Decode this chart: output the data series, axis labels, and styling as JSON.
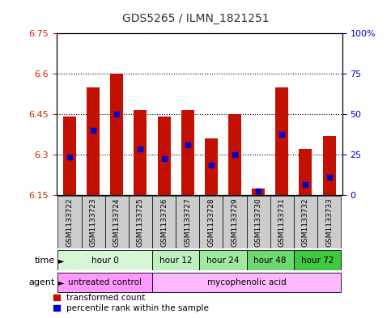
{
  "title": "GDS5265 / ILMN_1821251",
  "samples": [
    "GSM1133722",
    "GSM1133723",
    "GSM1133724",
    "GSM1133725",
    "GSM1133726",
    "GSM1133727",
    "GSM1133728",
    "GSM1133729",
    "GSM1133730",
    "GSM1133731",
    "GSM1133732",
    "GSM1133733"
  ],
  "bar_values": [
    6.44,
    6.55,
    6.6,
    6.465,
    6.44,
    6.465,
    6.36,
    6.45,
    6.175,
    6.55,
    6.32,
    6.37
  ],
  "bar_bottom": 6.15,
  "blue_marker_values": [
    6.29,
    6.39,
    6.45,
    6.32,
    6.285,
    6.335,
    6.26,
    6.3,
    6.165,
    6.375,
    6.19,
    6.215
  ],
  "ylim_left": [
    6.15,
    6.75
  ],
  "ylim_right": [
    0,
    100
  ],
  "yticks_left": [
    6.15,
    6.3,
    6.45,
    6.6,
    6.75
  ],
  "yticks_right": [
    0,
    25,
    50,
    75,
    100
  ],
  "ytick_labels_left": [
    "6.15",
    "6.3",
    "6.45",
    "6.6",
    "6.75"
  ],
  "ytick_labels_right": [
    "0",
    "25",
    "50",
    "75",
    "100%"
  ],
  "bar_color": "#C41000",
  "blue_color": "#0000CC",
  "time_groups": [
    {
      "label": "hour 0",
      "start": 0,
      "end": 3
    },
    {
      "label": "hour 12",
      "start": 4,
      "end": 5
    },
    {
      "label": "hour 24",
      "start": 6,
      "end": 7
    },
    {
      "label": "hour 48",
      "start": 8,
      "end": 9
    },
    {
      "label": "hour 72",
      "start": 10,
      "end": 11
    }
  ],
  "time_colors": [
    "#D8F5D8",
    "#C0F0C0",
    "#A0E8A0",
    "#70D870",
    "#40C840"
  ],
  "agent_groups": [
    {
      "label": "untreated control",
      "start": 0,
      "end": 3
    },
    {
      "label": "mycophenolic acid",
      "start": 4,
      "end": 11
    }
  ],
  "agent_colors": [
    "#FF99FF",
    "#FFB8FF"
  ],
  "xticklabel_bg": "#CCCCCC",
  "legend_red_label": "transformed count",
  "legend_blue_label": "percentile rank within the sample",
  "bar_width": 0.55,
  "left_ycolor": "#CC2200",
  "right_ycolor": "#0000CC",
  "title_fontsize": 10,
  "n_samples": 12
}
